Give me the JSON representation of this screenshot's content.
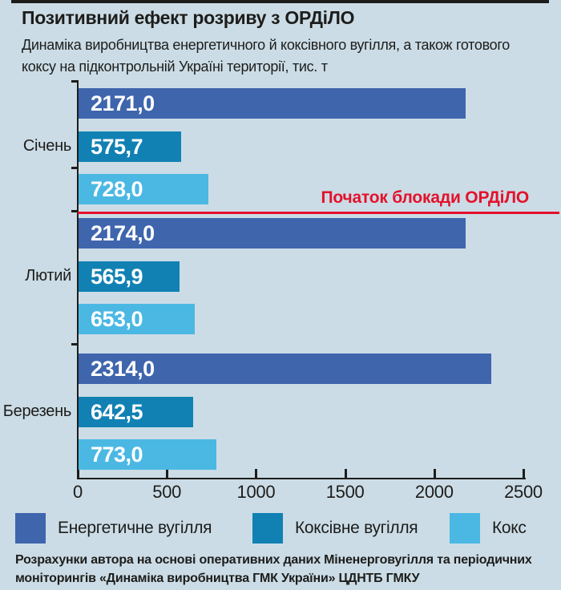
{
  "header": {
    "title": "Позитивний ефект розриву з ОРДіЛО",
    "subtitle_lines": [
      "Динаміка виробництва енергетичного й коксівного вугілля, а також готового",
      "коксу на підконтрольній Україні території, тис. т"
    ]
  },
  "chart_data": {
    "type": "bar",
    "orientation": "horizontal",
    "unit": "тис. т",
    "categories": [
      "Січень",
      "Лютий",
      "Березень"
    ],
    "series": [
      {
        "name": "Енергетичне вугілля",
        "color": "#3f65ad",
        "values": [
          2171.0,
          2174.0,
          2314.0
        ],
        "labels": [
          "2171,0",
          "2174,0",
          "2314,0"
        ]
      },
      {
        "name": "Коксівне вугілля",
        "color": "#1181b4",
        "values": [
          575.7,
          565.9,
          642.5
        ],
        "labels": [
          "575,7",
          "565,9",
          "642,5"
        ]
      },
      {
        "name": "Кокс",
        "color": "#4bb8e3",
        "values": [
          728.0,
          653.0,
          773.0
        ],
        "labels": [
          "728,0",
          "653,0",
          "773,0"
        ]
      }
    ],
    "xlim": [
      0,
      2500
    ],
    "x_ticks": [
      0,
      500,
      1000,
      1500,
      2000,
      2500
    ],
    "x_tick_labels": [
      "0",
      "500",
      "1000",
      "1500",
      "2000",
      "2500"
    ],
    "grid": false,
    "legend_position": "bottom",
    "annotation": {
      "text": "Початок блокади ОРДіЛО",
      "after_category": "Січень",
      "color": "#e4112b"
    }
  },
  "footer_lines": [
    "Розрахунки автора на основі оперативних даних Міненерговугілля та періодичних",
    "моніторингів «Динаміка виробництва ГМК України» ЦДНТБ ГМКУ"
  ],
  "colors": {
    "background": "#cbdce6",
    "text": "#1d1d1b",
    "bar_value_text": "#ffffff",
    "annotation_red": "#e4112b",
    "top_rule": "#1d1d1b"
  }
}
